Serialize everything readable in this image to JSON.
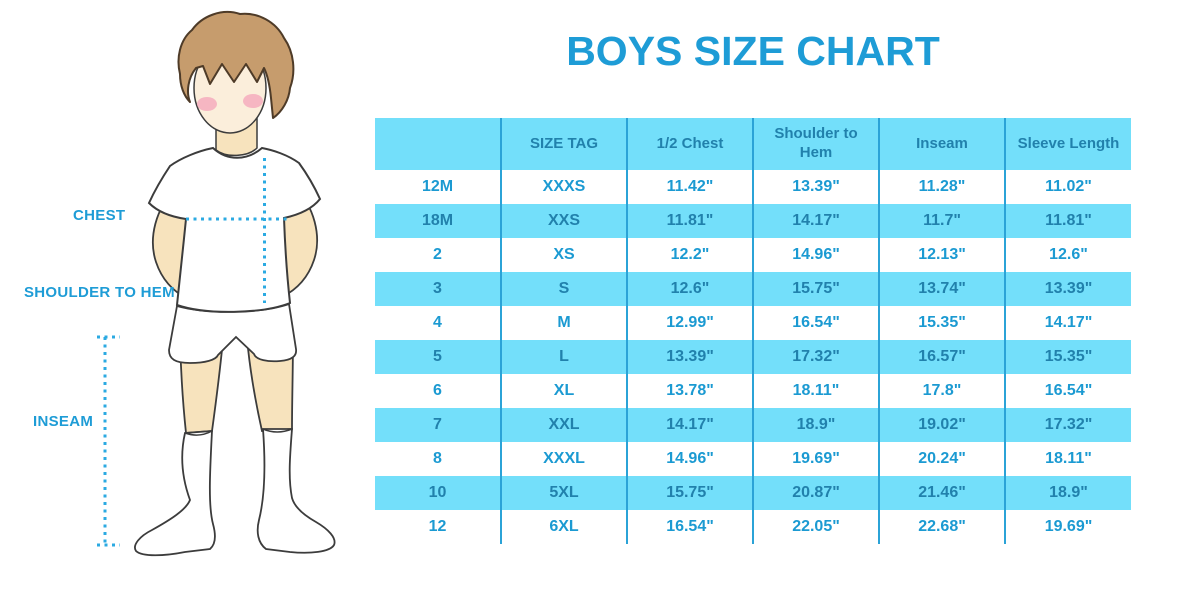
{
  "title": "BOYS SIZE CHART",
  "diagram": {
    "labels": {
      "chest": "CHEST",
      "shoulder_to_hem": "SHOULDER TO HEM",
      "inseam": "INSEAM"
    }
  },
  "table": {
    "headers": [
      "",
      "SIZE TAG",
      "1/2 Chest",
      "Shoulder to Hem",
      "Inseam",
      "Sleeve Length"
    ],
    "rows": [
      [
        "12M",
        "XXXS",
        "11.42\"",
        "13.39\"",
        "11.28\"",
        "11.02\""
      ],
      [
        "18M",
        "XXS",
        "11.81\"",
        "14.17\"",
        "11.7\"",
        "11.81\""
      ],
      [
        "2",
        "XS",
        "12.2\"",
        "14.96\"",
        "12.13\"",
        "12.6\""
      ],
      [
        "3",
        "S",
        "12.6\"",
        "15.75\"",
        "13.74\"",
        "13.39\""
      ],
      [
        "4",
        "M",
        "12.99\"",
        "16.54\"",
        "15.35\"",
        "14.17\""
      ],
      [
        "5",
        "L",
        "13.39\"",
        "17.32\"",
        "16.57\"",
        "15.35\""
      ],
      [
        "6",
        "XL",
        "13.78\"",
        "18.11\"",
        "17.8\"",
        "16.54\""
      ],
      [
        "7",
        "XXL",
        "14.17\"",
        "18.9\"",
        "19.02\"",
        "17.32\""
      ],
      [
        "8",
        "XXXL",
        "14.96\"",
        "19.69\"",
        "20.24\"",
        "18.11\""
      ],
      [
        "10",
        "5XL",
        "15.75\"",
        "20.87\"",
        "21.46\"",
        "18.9\""
      ],
      [
        "12",
        "6XL",
        "16.54\"",
        "22.05\"",
        "22.68\"",
        "19.69\""
      ]
    ]
  },
  "colors": {
    "accent": "#1E9CD6",
    "cyan": "#73DFFA",
    "dark": "#2181AC",
    "rowtext": "#1B9AD2",
    "line": "#2BA3D7"
  }
}
